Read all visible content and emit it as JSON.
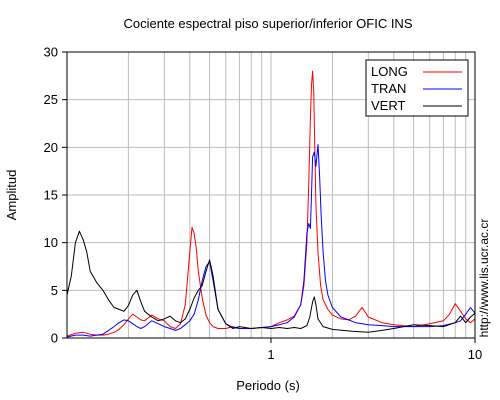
{
  "chart_data": {
    "type": "line",
    "title": "Cociente espectral piso superior/inferior  OFIC INS",
    "xlabel": "Periodo (s)",
    "ylabel": "Amplitud",
    "xscale": "log",
    "xlim": [
      0.1,
      10
    ],
    "ylim": [
      0,
      30
    ],
    "xticks": [
      1,
      10
    ],
    "xtick_labels": [
      "1",
      "10"
    ],
    "yticks": [
      0,
      5,
      10,
      15,
      20,
      25,
      30
    ],
    "ytick_labels": [
      "0",
      "5",
      "10",
      "15",
      "20",
      "25",
      "30"
    ],
    "grid": true,
    "legend_position": "top-right",
    "side_note": "http://www.lis.ucr.ac.cr",
    "series": [
      {
        "name": "LONG",
        "color": "#ff0000",
        "x": [
          0.1,
          0.11,
          0.12,
          0.13,
          0.14,
          0.15,
          0.16,
          0.17,
          0.18,
          0.19,
          0.2,
          0.21,
          0.22,
          0.23,
          0.24,
          0.26,
          0.28,
          0.3,
          0.32,
          0.34,
          0.36,
          0.38,
          0.4,
          0.41,
          0.42,
          0.43,
          0.44,
          0.46,
          0.48,
          0.5,
          0.52,
          0.55,
          0.6,
          0.65,
          0.7,
          0.8,
          0.9,
          1.0,
          1.1,
          1.2,
          1.3,
          1.4,
          1.45,
          1.5,
          1.53,
          1.56,
          1.58,
          1.6,
          1.62,
          1.64,
          1.66,
          1.7,
          1.75,
          1.8,
          1.9,
          2.0,
          2.2,
          2.4,
          2.6,
          2.7,
          2.8,
          3.0,
          3.5,
          4.0,
          5.0,
          6.0,
          7.0,
          7.5,
          8.0,
          8.5,
          9.0,
          9.5,
          10.0
        ],
        "y": [
          0.2,
          0.5,
          0.6,
          0.4,
          0.3,
          0.3,
          0.4,
          0.6,
          0.9,
          1.4,
          2.0,
          2.5,
          2.2,
          1.9,
          1.8,
          2.4,
          2.0,
          1.8,
          1.2,
          1.0,
          1.5,
          3.5,
          9.0,
          11.6,
          11.0,
          9.5,
          7.0,
          4.2,
          2.4,
          1.6,
          1.2,
          1.0,
          1.0,
          1.2,
          1.0,
          1.0,
          1.1,
          1.2,
          1.6,
          1.9,
          2.3,
          3.5,
          5.5,
          10.0,
          16.0,
          23.0,
          26.5,
          28.0,
          26.0,
          20.0,
          14.0,
          9.0,
          5.5,
          4.0,
          3.0,
          2.4,
          2.0,
          1.9,
          2.3,
          2.8,
          3.2,
          2.2,
          1.6,
          1.4,
          1.2,
          1.5,
          1.8,
          2.5,
          3.6,
          2.8,
          2.0,
          1.6,
          2.0
        ]
      },
      {
        "name": "TRAN",
        "color": "#0000ff",
        "x": [
          0.1,
          0.11,
          0.12,
          0.13,
          0.14,
          0.15,
          0.16,
          0.17,
          0.18,
          0.19,
          0.2,
          0.21,
          0.22,
          0.23,
          0.24,
          0.26,
          0.28,
          0.3,
          0.32,
          0.34,
          0.36,
          0.38,
          0.4,
          0.42,
          0.44,
          0.46,
          0.48,
          0.5,
          0.52,
          0.55,
          0.6,
          0.65,
          0.7,
          0.8,
          0.9,
          1.0,
          1.1,
          1.2,
          1.3,
          1.4,
          1.45,
          1.5,
          1.53,
          1.56,
          1.58,
          1.6,
          1.63,
          1.66,
          1.7,
          1.73,
          1.76,
          1.8,
          1.85,
          1.9,
          2.0,
          2.2,
          2.4,
          2.6,
          2.8,
          3.0,
          3.5,
          4.0,
          5.0,
          6.0,
          7.0,
          8.0,
          8.5,
          9.0,
          9.5,
          10.0
        ],
        "y": [
          0.1,
          0.3,
          0.3,
          0.2,
          0.3,
          0.4,
          0.8,
          1.2,
          1.6,
          1.9,
          1.8,
          1.5,
          1.2,
          1.0,
          1.2,
          1.8,
          1.5,
          1.2,
          1.0,
          0.8,
          1.0,
          1.4,
          1.8,
          2.5,
          4.0,
          6.0,
          7.5,
          8.0,
          6.0,
          3.0,
          1.5,
          1.1,
          1.0,
          1.0,
          1.1,
          1.2,
          1.4,
          1.6,
          2.2,
          3.5,
          6.0,
          11.0,
          12.0,
          11.5,
          15.0,
          19.0,
          19.5,
          18.0,
          20.3,
          17.0,
          13.0,
          9.0,
          6.0,
          4.5,
          3.2,
          2.2,
          1.9,
          1.6,
          1.5,
          1.4,
          1.3,
          1.2,
          1.2,
          1.2,
          1.3,
          1.6,
          1.8,
          2.5,
          3.2,
          2.6
        ]
      },
      {
        "name": "VERT",
        "color": "#000000",
        "x": [
          0.1,
          0.105,
          0.11,
          0.115,
          0.12,
          0.125,
          0.13,
          0.14,
          0.15,
          0.16,
          0.17,
          0.18,
          0.19,
          0.2,
          0.21,
          0.22,
          0.23,
          0.24,
          0.26,
          0.28,
          0.3,
          0.32,
          0.34,
          0.36,
          0.38,
          0.4,
          0.42,
          0.44,
          0.46,
          0.48,
          0.5,
          0.52,
          0.55,
          0.6,
          0.65,
          0.7,
          0.8,
          0.9,
          1.0,
          1.1,
          1.2,
          1.3,
          1.4,
          1.5,
          1.55,
          1.6,
          1.63,
          1.66,
          1.7,
          1.8,
          2.0,
          2.5,
          3.0,
          3.5,
          4.0,
          5.0,
          6.0,
          7.0,
          8.0,
          8.5,
          9.0,
          9.5,
          10.0
        ],
        "y": [
          4.5,
          6.5,
          10.0,
          11.2,
          10.3,
          9.0,
          7.0,
          5.8,
          5.0,
          4.0,
          3.2,
          3.0,
          2.8,
          3.4,
          4.5,
          5.0,
          3.8,
          2.8,
          2.2,
          1.8,
          2.0,
          2.3,
          1.8,
          1.6,
          2.0,
          3.0,
          4.2,
          5.0,
          5.5,
          7.0,
          8.2,
          6.5,
          3.0,
          1.5,
          1.0,
          1.2,
          1.0,
          1.1,
          1.0,
          1.1,
          1.0,
          1.1,
          1.0,
          1.3,
          2.2,
          3.8,
          4.3,
          3.5,
          2.0,
          1.2,
          0.9,
          0.7,
          0.6,
          0.8,
          1.0,
          1.4,
          1.3,
          1.2,
          1.6,
          2.3,
          1.6,
          2.2,
          2.6
        ]
      }
    ]
  }
}
